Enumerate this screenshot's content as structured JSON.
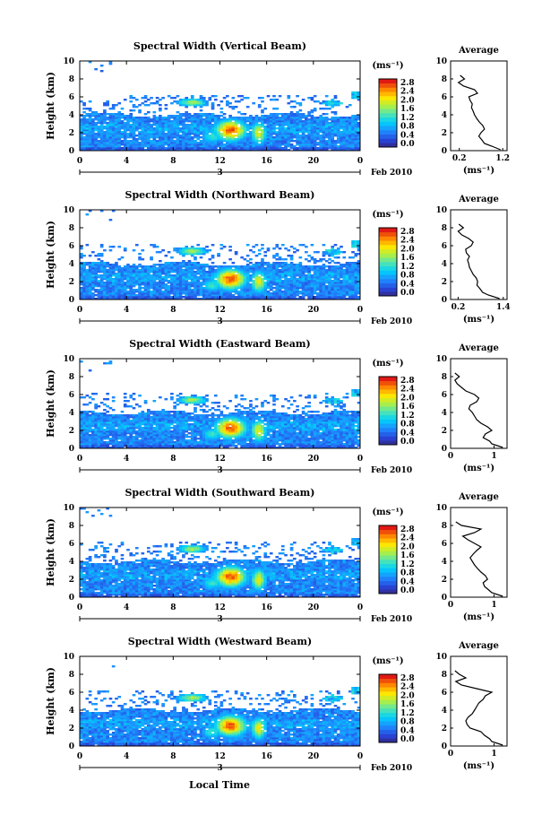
{
  "figure": {
    "panels": [
      {
        "title": "Spectral Width (Vertical Beam)",
        "avg_xticks": [
          "0.2",
          "1.2"
        ],
        "avg_xrange": [
          0.0,
          1.3
        ]
      },
      {
        "title": "Spectral Width (Northward Beam)",
        "avg_xticks": [
          "0.2",
          "1.4"
        ],
        "avg_xrange": [
          0.0,
          1.5
        ]
      },
      {
        "title": "Spectral Width (Eastward Beam)",
        "avg_xticks": [
          "0",
          "1"
        ],
        "avg_xrange": [
          0.0,
          1.3
        ]
      },
      {
        "title": "Spectral Width (Southward Beam)",
        "avg_xticks": [
          "0",
          "1"
        ],
        "avg_xrange": [
          0.0,
          1.3
        ]
      },
      {
        "title": "Spectral Width (Westward Beam)",
        "avg_xticks": [
          "0",
          "1"
        ],
        "avg_xrange": [
          0.0,
          1.3
        ]
      }
    ],
    "ylabel": "Height (km)",
    "yticks": [
      "0",
      "2",
      "4",
      "6",
      "8",
      "10"
    ],
    "xticks": [
      "0",
      "4",
      "8",
      "12",
      "16",
      "20",
      "0"
    ],
    "date_marker": "3",
    "date_suffix": "Feb 2010",
    "xlabel": "Local Time",
    "colorbar_unit": "(ms⁻¹)",
    "colorbar_ticks": [
      "0.0",
      "0.4",
      "0.8",
      "1.2",
      "1.6",
      "2.0",
      "2.4",
      "2.8"
    ],
    "avg_title": "Average",
    "avg_unit": "(ms⁻¹)",
    "avg_yticks": [
      "0",
      "2",
      "4",
      "6",
      "8",
      "10"
    ]
  },
  "chart_data": [
    {
      "type": "heatmap",
      "title": "Spectral Width (Vertical Beam)",
      "xlabel": "",
      "ylabel": "Height (km)",
      "xlim": [
        0,
        24
      ],
      "ylim": [
        0,
        10
      ],
      "colorbar_range": [
        0.0,
        2.8
      ],
      "colorbar_unit": "(ms⁻¹)"
    },
    {
      "type": "line",
      "title": "Average",
      "ylabel": "Height (km)",
      "xlabel": "(ms⁻¹)",
      "x": [
        1.15,
        0.95,
        0.78,
        0.72,
        0.65,
        0.7,
        0.78,
        0.74,
        0.66,
        0.6,
        0.55,
        0.52,
        0.48,
        0.5,
        0.45,
        0.42,
        0.62,
        0.55,
        0.3,
        0.18,
        0.32,
        0.22
      ],
      "y": [
        0.1,
        0.5,
        0.8,
        1.2,
        1.6,
        2.0,
        2.4,
        2.8,
        3.2,
        3.6,
        4.0,
        4.4,
        4.8,
        5.2,
        5.6,
        6.0,
        6.4,
        6.8,
        7.2,
        7.6,
        8.0,
        8.4
      ],
      "ylim": [
        0,
        10
      ]
    },
    {
      "type": "heatmap",
      "title": "Spectral Width (Northward Beam)",
      "xlabel": "",
      "ylabel": "Height (km)",
      "xlim": [
        0,
        24
      ],
      "ylim": [
        0,
        10
      ],
      "colorbar_range": [
        0.0,
        2.8
      ],
      "colorbar_unit": "(ms⁻¹)"
    },
    {
      "type": "line",
      "title": "Average",
      "ylabel": "Height (km)",
      "xlabel": "(ms⁻¹)",
      "x": [
        1.3,
        1.0,
        0.85,
        0.78,
        0.7,
        0.72,
        0.68,
        0.6,
        0.55,
        0.5,
        0.48,
        0.45,
        0.5,
        0.42,
        0.4,
        0.55,
        0.6,
        0.48,
        0.3,
        0.2,
        0.34,
        0.22
      ],
      "y": [
        0.1,
        0.5,
        0.8,
        1.2,
        1.6,
        2.0,
        2.4,
        2.8,
        3.2,
        3.6,
        4.0,
        4.4,
        4.8,
        5.2,
        5.6,
        6.0,
        6.4,
        6.8,
        7.2,
        7.6,
        8.0,
        8.4
      ],
      "ylim": [
        0,
        10
      ]
    },
    {
      "type": "heatmap",
      "title": "Spectral Width (Eastward Beam)",
      "xlabel": "",
      "ylabel": "Height (km)",
      "xlim": [
        0,
        24
      ],
      "ylim": [
        0,
        10
      ],
      "colorbar_range": [
        0.0,
        2.8
      ],
      "colorbar_unit": "(ms⁻¹)"
    },
    {
      "type": "line",
      "title": "Average",
      "ylabel": "Height (km)",
      "xlabel": "(ms⁻¹)",
      "x": [
        1.2,
        0.95,
        0.9,
        0.75,
        0.8,
        0.95,
        0.85,
        0.7,
        0.6,
        0.55,
        0.5,
        0.42,
        0.45,
        0.6,
        0.65,
        0.55,
        0.35,
        0.25,
        0.15,
        0.1,
        0.2,
        0.1
      ],
      "y": [
        0.1,
        0.5,
        0.8,
        1.2,
        1.6,
        2.0,
        2.4,
        2.8,
        3.2,
        3.6,
        4.0,
        4.4,
        4.8,
        5.2,
        5.6,
        6.0,
        6.4,
        6.8,
        7.2,
        7.6,
        8.0,
        8.4
      ],
      "ylim": [
        0,
        10
      ]
    },
    {
      "type": "heatmap",
      "title": "Spectral Width (Southward Beam)",
      "xlabel": "",
      "ylabel": "Height (km)",
      "xlim": [
        0,
        24
      ],
      "ylim": [
        0,
        10
      ],
      "colorbar_range": [
        0.0,
        2.8
      ],
      "colorbar_unit": "(ms⁻¹)"
    },
    {
      "type": "line",
      "title": "Average",
      "ylabel": "Height (km)",
      "xlabel": "(ms⁻¹)",
      "x": [
        1.2,
        0.95,
        0.88,
        0.78,
        0.75,
        0.85,
        0.8,
        0.7,
        0.62,
        0.55,
        0.5,
        0.45,
        0.52,
        0.6,
        0.7,
        0.55,
        0.4,
        0.28,
        0.55,
        0.7,
        0.25,
        0.12
      ],
      "y": [
        0.1,
        0.5,
        0.8,
        1.2,
        1.6,
        2.0,
        2.4,
        2.8,
        3.2,
        3.6,
        4.0,
        4.4,
        4.8,
        5.2,
        5.6,
        6.0,
        6.4,
        6.8,
        7.2,
        7.6,
        8.0,
        8.4
      ],
      "ylim": [
        0,
        10
      ]
    },
    {
      "type": "heatmap",
      "title": "Spectral Width (Westward Beam)",
      "xlabel": "Local Time",
      "ylabel": "Height (km)",
      "xlim": [
        0,
        24
      ],
      "ylim": [
        0,
        10
      ],
      "colorbar_range": [
        0.0,
        2.8
      ],
      "colorbar_unit": "(ms⁻¹)"
    },
    {
      "type": "line",
      "title": "Average",
      "ylabel": "Height (km)",
      "xlabel": "(ms⁻¹)",
      "x": [
        1.2,
        0.95,
        0.9,
        0.78,
        0.7,
        0.45,
        0.38,
        0.35,
        0.4,
        0.5,
        0.55,
        0.6,
        0.65,
        0.75,
        0.8,
        0.95,
        0.6,
        0.25,
        0.12,
        0.35,
        0.2,
        0.1
      ],
      "y": [
        0.1,
        0.5,
        0.8,
        1.2,
        1.6,
        2.0,
        2.4,
        2.8,
        3.2,
        3.6,
        4.0,
        4.4,
        4.8,
        5.2,
        5.6,
        6.0,
        6.4,
        6.8,
        7.2,
        7.6,
        8.0,
        8.4
      ],
      "ylim": [
        0,
        10
      ]
    }
  ]
}
